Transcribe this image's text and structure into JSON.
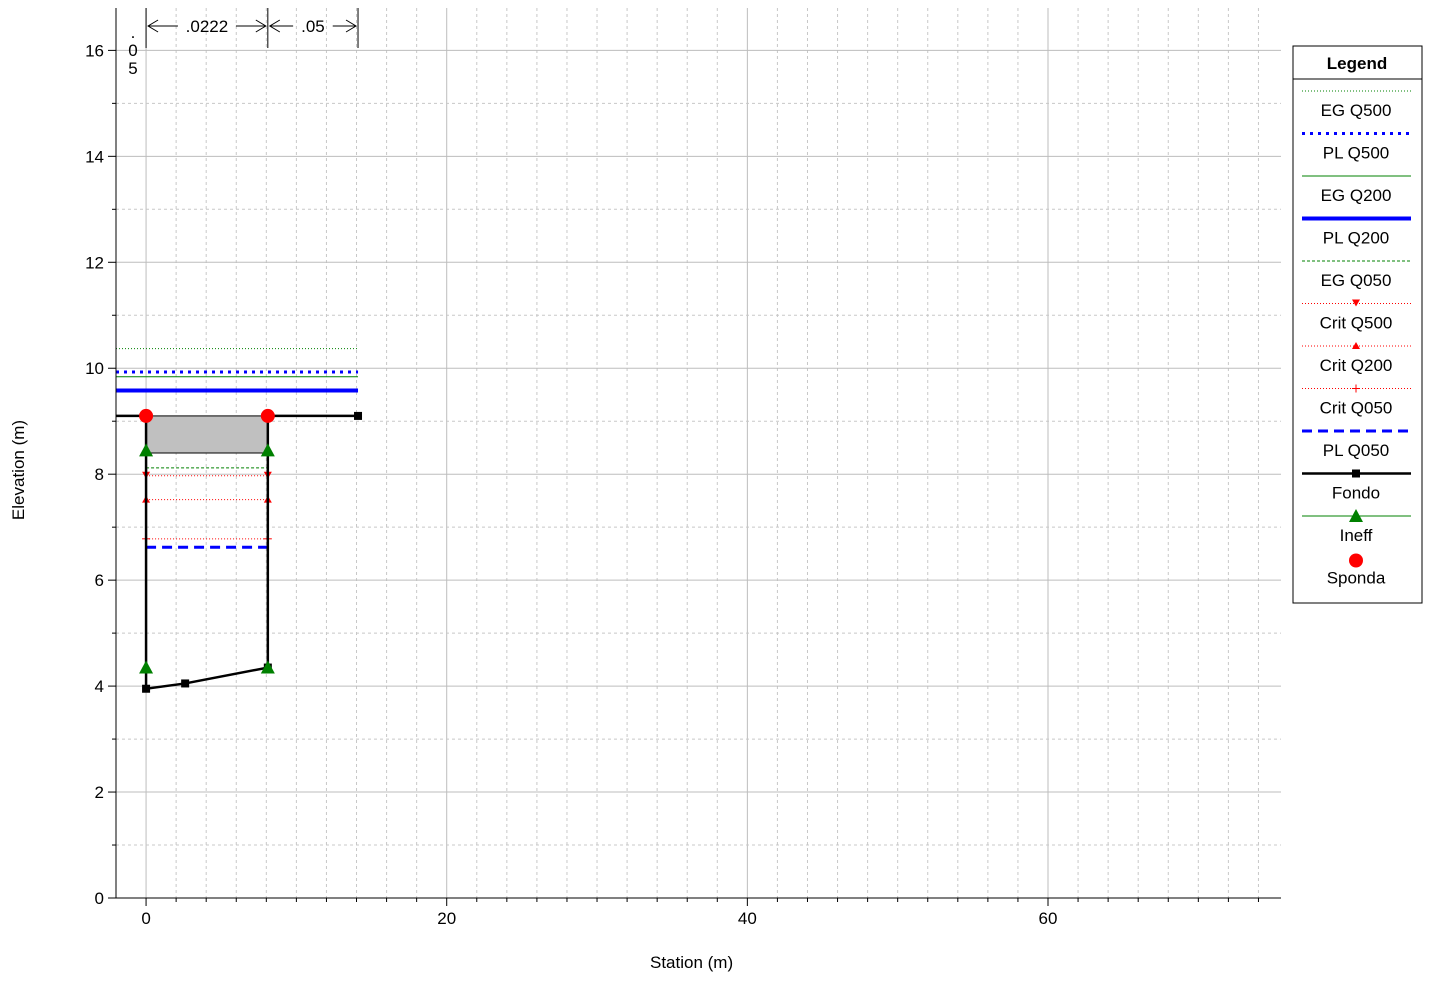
{
  "chart_data": {
    "type": "line",
    "xlabel": "Station (m)",
    "ylabel": "Elevation (m)",
    "xlim": [
      -2,
      75.5
    ],
    "ylim": [
      0,
      16.8
    ],
    "x_ticks": [
      0,
      20,
      40,
      60
    ],
    "y_ticks": [
      0,
      2,
      4,
      6,
      8,
      10,
      12,
      14,
      16
    ],
    "x_minor_step": 2,
    "y_minor_step": 1,
    "grid": true,
    "legend_position": "right",
    "manning": {
      "dividers": [
        0,
        8.1,
        14.1
      ],
      "labels": [
        ".0222",
        ".05"
      ],
      "left_label": ".05"
    },
    "ground": {
      "name": "Fondo",
      "x": [
        -2,
        0,
        0,
        2.6,
        8.1,
        8.1,
        14.1
      ],
      "y": [
        9.1,
        9.1,
        3.95,
        4.05,
        4.35,
        9.1,
        9.1
      ],
      "marker_idx": [
        2,
        3,
        4,
        6
      ]
    },
    "obstruction": {
      "x0": 0,
      "x1": 8.1,
      "y0": 8.4,
      "y1": 9.1,
      "color": "#c0c0c0"
    },
    "banks": {
      "name": "Sponda",
      "x": [
        0,
        8.1
      ],
      "y": [
        9.1,
        9.1
      ]
    },
    "ineff": {
      "name": "Ineff",
      "x": [
        0,
        8.1
      ],
      "y_top": 8.45,
      "y_bottom": 4.35
    },
    "levels": [
      {
        "name": "EG Q500",
        "x": [
          -2,
          14.1
        ],
        "y": 10.37,
        "color": "#008000",
        "style": "dotted-thin"
      },
      {
        "name": "PL Q500",
        "x": [
          -2,
          14.1
        ],
        "y": 9.93,
        "color": "#0000ff",
        "style": "dotted-thick"
      },
      {
        "name": "EG Q200",
        "x": [
          -2,
          14.1
        ],
        "y": 9.84,
        "color": "#008000",
        "style": "solid-thin"
      },
      {
        "name": "PL Q200",
        "x": [
          -2,
          14.1
        ],
        "y": 9.58,
        "color": "#0000ff",
        "style": "solid-thick"
      },
      {
        "name": "EG Q050",
        "x": [
          0,
          8.1
        ],
        "y": 8.12,
        "color": "#008000",
        "style": "dash-thin"
      },
      {
        "name": "Crit Q500",
        "x": [
          0,
          8.1
        ],
        "y": 7.97,
        "color": "#ff0000",
        "style": "crit",
        "marker": "tri-down"
      },
      {
        "name": "Crit Q200",
        "x": [
          0,
          8.1
        ],
        "y": 7.52,
        "color": "#ff0000",
        "style": "crit",
        "marker": "tri-up"
      },
      {
        "name": "Crit Q050",
        "x": [
          0,
          8.1
        ],
        "y": 6.78,
        "color": "#ff0000",
        "style": "crit",
        "marker": "plus"
      },
      {
        "name": "PL Q050",
        "x": [
          0,
          8.1
        ],
        "y": 6.62,
        "color": "#0000ff",
        "style": "dash-thick"
      }
    ],
    "legend_title": "Legend",
    "legend": [
      {
        "name": "EG Q500",
        "color": "#008000",
        "style": "dotted-thin"
      },
      {
        "name": "PL Q500",
        "color": "#0000ff",
        "style": "dotted-thick"
      },
      {
        "name": "EG Q200",
        "color": "#008000",
        "style": "solid-thin"
      },
      {
        "name": "PL Q200",
        "color": "#0000ff",
        "style": "solid-thick"
      },
      {
        "name": "EG Q050",
        "color": "#008000",
        "style": "dash-thin"
      },
      {
        "name": "Crit Q500",
        "color": "#ff0000",
        "style": "crit",
        "marker": "tri-down"
      },
      {
        "name": "Crit Q200",
        "color": "#ff0000",
        "style": "crit",
        "marker": "tri-up"
      },
      {
        "name": "Crit Q050",
        "color": "#ff0000",
        "style": "crit",
        "marker": "plus"
      },
      {
        "name": "PL Q050",
        "color": "#0000ff",
        "style": "dash-thick"
      },
      {
        "name": "Fondo",
        "color": "#000000",
        "style": "ground",
        "marker": "square"
      },
      {
        "name": "Ineff",
        "color": "#008000",
        "style": "ineff",
        "marker": "tri-up-big"
      },
      {
        "name": "Sponda",
        "color": "#ff0000",
        "style": "none",
        "marker": "circle"
      }
    ]
  }
}
